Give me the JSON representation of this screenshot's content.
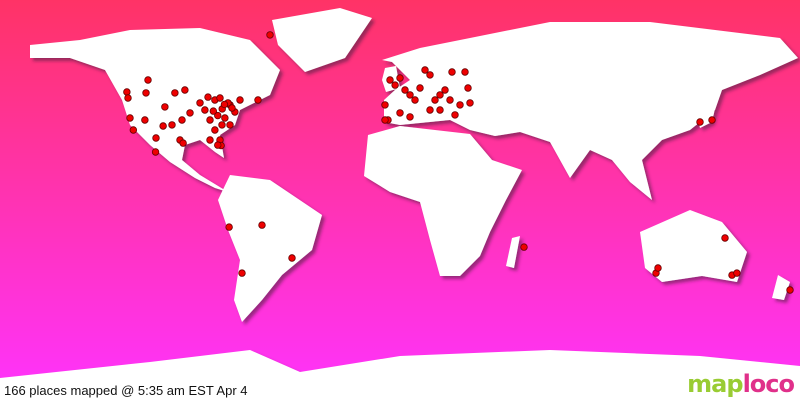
{
  "caption": "166 places mapped @ 5:35 am EST Apr 4",
  "logo": {
    "part1": "map",
    "part2": "loco"
  },
  "colors": {
    "ocean_top": "#ff3366",
    "ocean_bottom": "#ff33ff",
    "land": "#ffffff",
    "marker": "#ee0000",
    "marker_outline": "#660000",
    "logo_map": "#99cc33",
    "logo_loco": "#e0308a"
  },
  "projection": "equirectangular",
  "markers": [
    [
      48.6,
      -122.9
    ],
    [
      45.9,
      -122.4
    ],
    [
      48.2,
      -114.3
    ],
    [
      54,
      -113.4
    ],
    [
      36.9,
      -121.5
    ],
    [
      31.5,
      -120
    ],
    [
      36,
      -114.8
    ],
    [
      27.9,
      -109.8
    ],
    [
      41.9,
      -105.8
    ],
    [
      48.2,
      -101.3
    ],
    [
      49.5,
      -96.8
    ],
    [
      36,
      -98.1
    ],
    [
      33.8,
      -102.6
    ],
    [
      39.2,
      -94.5
    ],
    [
      43.7,
      -90
    ],
    [
      40.5,
      -87.8
    ],
    [
      36,
      -85.5
    ],
    [
      31.5,
      -83.3
    ],
    [
      27,
      -81
    ],
    [
      24.5,
      -80.5
    ],
    [
      42.8,
      -76.5
    ],
    [
      45,
      -72
    ],
    [
      39.6,
      -74.3
    ],
    [
      36.9,
      -78.8
    ],
    [
      45,
      -63.9
    ],
    [
      74.3,
      -58.5
    ],
    [
      27,
      -99
    ],
    [
      21.6,
      -110
    ],
    [
      25.6,
      -97.6
    ],
    [
      33.3,
      -106.6
    ],
    [
      27,
      -85.5
    ],
    [
      24.7,
      -82
    ],
    [
      45,
      -83.3
    ],
    [
      45.9,
      -81
    ],
    [
      46.3,
      -86.4
    ],
    [
      43.7,
      -77.4
    ],
    [
      41.4,
      -75.6
    ],
    [
      33.8,
      -80.1
    ],
    [
      33.8,
      -76.5
    ],
    [
      41,
      -80
    ],
    [
      38,
      -82
    ],
    [
      40,
      -84
    ],
    [
      43,
      -79
    ],
    [
      -12.2,
      -76.9
    ],
    [
      -11.3,
      -62.1
    ],
    [
      -26.1,
      -48.6
    ],
    [
      -32.9,
      -71.1
    ],
    [
      54,
      -4.5
    ],
    [
      51.7,
      -2.2
    ],
    [
      54.9,
      0
    ],
    [
      49.5,
      2.25
    ],
    [
      47.3,
      4.5
    ],
    [
      42.8,
      -6.75
    ],
    [
      36,
      -5.4
    ],
    [
      39.2,
      0
    ],
    [
      45,
      6.75
    ],
    [
      50.4,
      9
    ],
    [
      58.5,
      11.25
    ],
    [
      56.3,
      13.5
    ],
    [
      47.3,
      18
    ],
    [
      45,
      22.5
    ],
    [
      38.3,
      24.75
    ],
    [
      50.4,
      30.6
    ],
    [
      57.6,
      29.25
    ],
    [
      57.6,
      23.4
    ],
    [
      37.4,
      4.5
    ],
    [
      40.5,
      13.5
    ],
    [
      45,
      15.75
    ],
    [
      49.5,
      20.25
    ],
    [
      40.5,
      18
    ],
    [
      42.8,
      27
    ],
    [
      43.7,
      31.5
    ],
    [
      36,
      -6.75
    ],
    [
      36,
      140.4
    ],
    [
      35.1,
      135
    ],
    [
      -17.1,
      146.25
    ],
    [
      -21.2,
      55.8
    ],
    [
      -32.9,
      115.2
    ],
    [
      -30.6,
      116.1
    ],
    [
      -33.8,
      149.4
    ],
    [
      -32.9,
      151.6
    ],
    [
      -40.5,
      175.5
    ]
  ]
}
